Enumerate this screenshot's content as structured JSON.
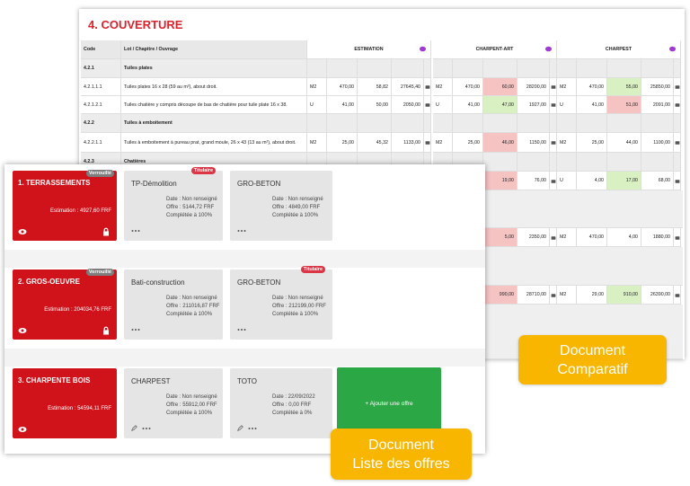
{
  "comparatif": {
    "title": "4. COUVERTURE",
    "headers": {
      "code": "Code",
      "lot": "Lot / Chapitre / Ouvrage",
      "offers": [
        "ESTIMATION",
        "CHARPENT-ART",
        "CHARPEST"
      ]
    },
    "rows": [
      {
        "code": "4.2.1",
        "label": "Tuiles plates"
      },
      {
        "code": "4.2.1.1.1",
        "label": "Tuiles plates 16 x 28 (59 au m²), about droit.",
        "offers": [
          {
            "unit": "M2",
            "qty": "470,00",
            "price": "58,82",
            "total": "27645,40"
          },
          {
            "unit": "M2",
            "qty": "470,00",
            "price": "60,00",
            "total": "28200,00",
            "flag": "red"
          },
          {
            "unit": "M2",
            "qty": "470,00",
            "price": "55,00",
            "total": "25850,00",
            "flag": "green"
          }
        ]
      },
      {
        "code": "4.2.1.2.1",
        "label": "Tuiles chatière y compris découpe de bas de chatière pour tuile plate 16 x 38.",
        "offers": [
          {
            "unit": "U",
            "qty": "41,00",
            "price": "50,00",
            "total": "2050,00"
          },
          {
            "unit": "U",
            "qty": "41,00",
            "price": "47,00",
            "total": "1927,00",
            "flag": "green"
          },
          {
            "unit": "U",
            "qty": "41,00",
            "price": "51,00",
            "total": "2091,00",
            "flag": "red"
          }
        ]
      },
      {
        "code": "4.2.2",
        "label": "Tuiles à emboitement"
      },
      {
        "code": "4.2.2.1.1",
        "label": "Tuiles à emboitement à pureau prat, grand moule, 26 x 43 (13 au m²), about droit.",
        "offers": [
          {
            "unit": "M2",
            "qty": "25,00",
            "price": "45,32",
            "total": "1133,00"
          },
          {
            "unit": "M2",
            "qty": "25,00",
            "price": "46,00",
            "total": "1150,00",
            "flag": "red"
          },
          {
            "unit": "M2",
            "qty": "25,00",
            "price": "44,00",
            "total": "1100,00"
          }
        ]
      },
      {
        "code": "4.2.3",
        "label": "Chatières"
      },
      {
        "offers": [
          null,
          {
            "price": "19,00",
            "total": "76,00",
            "flag": "red"
          },
          {
            "unit": "U",
            "qty": "4,00",
            "price": "17,00",
            "total": "68,00",
            "flag": "green"
          }
        ]
      },
      {
        "offers": [
          null,
          {
            "price": "5,00",
            "total": "2350,00",
            "flag": "red"
          },
          {
            "unit": "M2",
            "qty": "470,00",
            "price": "4,00",
            "total": "1880,00"
          }
        ]
      },
      {
        "offers": [
          null,
          {
            "price": "990,00",
            "total": "28710,00",
            "flag": "red"
          },
          {
            "unit": "M2",
            "qty": "29,00",
            "price": "910,00",
            "total": "26390,00",
            "flag": "green"
          }
        ]
      }
    ]
  },
  "liste": {
    "lots": [
      {
        "title": "1. TERRASSEMENTS",
        "badge": "Verrouillé",
        "estimation": "Estimation : 4927,60 FRF",
        "locked": true,
        "offers": [
          {
            "name": "TP-Démolition",
            "badge": "Titulaire",
            "date": "Date : Non renseigné",
            "offre": "Offre : 5144,72 FRF",
            "completee": "Complétée à 100%"
          },
          {
            "name": "GRO-BETON",
            "date": "Date : Non renseigné",
            "offre": "Offre : 4849,00 FRF",
            "completee": "Complétée à 100%"
          }
        ]
      },
      {
        "title": "2. GROS-OEUVRE",
        "badge": "Verrouillé",
        "estimation": "Estimation : 204034,76 FRF",
        "locked": true,
        "offers": [
          {
            "name": "Bati-construction",
            "date": "Date : Non renseigné",
            "offre": "Offre : 211016,87 FRF",
            "completee": "Complétée à 100%"
          },
          {
            "name": "GRO-BETON",
            "badge": "Titulaire",
            "date": "Date : Non renseigné",
            "offre": "Offre : 212199,00 FRF",
            "completee": "Complétée à 100%"
          }
        ]
      },
      {
        "title": "3. CHARPENTE BOIS",
        "estimation": "Estimation : 54594,11 FRF",
        "locked": false,
        "editable": true,
        "offers": [
          {
            "name": "CHARPEST",
            "date": "Date : Non renseigné",
            "offre": "Offre : 55912,00 FRF",
            "completee": "Complétée à 100%"
          },
          {
            "name": "TOTO",
            "date": "Date : 22/09/2022",
            "offre": "Offre : 0,00 FRF",
            "completee": "Complétée à 0%"
          }
        ]
      }
    ],
    "add_offer": "+ Ajouter une offre"
  },
  "callouts": {
    "comparatif": [
      "Document",
      "Comparatif"
    ],
    "liste": [
      "Document",
      "Liste des offres"
    ]
  }
}
